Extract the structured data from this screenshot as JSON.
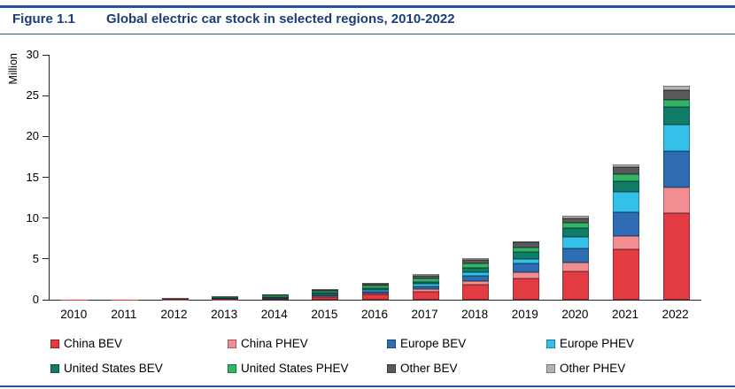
{
  "header": {
    "figure_label": "Figure 1.1",
    "title": "Global electric car stock in selected regions, 2010-2022"
  },
  "colors": {
    "accent": "#2456a4",
    "title_text": "#1b3c78",
    "axis": "#262626"
  },
  "chart_data": {
    "type": "bar",
    "stacked": true,
    "title": "Global electric car stock in selected regions, 2010-2022",
    "xlabel": "",
    "ylabel": "Million",
    "ylim": [
      0,
      30
    ],
    "yticks": [
      0,
      5,
      10,
      15,
      20,
      25,
      30
    ],
    "grid": false,
    "legend_position": "bottom",
    "categories": [
      "2010",
      "2011",
      "2012",
      "2013",
      "2014",
      "2015",
      "2016",
      "2017",
      "2018",
      "2019",
      "2020",
      "2021",
      "2022"
    ],
    "series": [
      {
        "name": "China BEV",
        "color": "#e23b41",
        "values": [
          0.01,
          0.01,
          0.02,
          0.03,
          0.08,
          0.3,
          0.63,
          1.0,
          1.84,
          2.6,
          3.5,
          6.2,
          10.6
        ]
      },
      {
        "name": "China PHEV",
        "color": "#f28e92",
        "values": [
          0.0,
          0.0,
          0.0,
          0.01,
          0.01,
          0.11,
          0.17,
          0.28,
          0.49,
          0.8,
          1.0,
          1.6,
          3.2
        ]
      },
      {
        "name": "Europe BEV",
        "color": "#2e6db4",
        "values": [
          0.0,
          0.01,
          0.02,
          0.05,
          0.09,
          0.15,
          0.22,
          0.34,
          0.56,
          1.0,
          1.75,
          2.9,
          4.4
        ]
      },
      {
        "name": "Europe PHEV",
        "color": "#33c1e9",
        "values": [
          0.0,
          0.0,
          0.01,
          0.02,
          0.06,
          0.12,
          0.19,
          0.3,
          0.45,
          0.6,
          1.4,
          2.5,
          3.3
        ]
      },
      {
        "name": "United States BEV",
        "color": "#0e7c66",
        "values": [
          0.0,
          0.01,
          0.03,
          0.07,
          0.12,
          0.16,
          0.21,
          0.3,
          0.56,
          0.9,
          1.1,
          1.35,
          2.1
        ]
      },
      {
        "name": "United States PHEV",
        "color": "#2eb566",
        "values": [
          0.0,
          0.01,
          0.04,
          0.1,
          0.16,
          0.24,
          0.32,
          0.42,
          0.53,
          0.55,
          0.65,
          0.8,
          0.9
        ]
      },
      {
        "name": "Other BEV",
        "color": "#595959",
        "values": [
          0.01,
          0.02,
          0.05,
          0.09,
          0.13,
          0.14,
          0.2,
          0.33,
          0.5,
          0.55,
          0.6,
          0.85,
          1.2
        ]
      },
      {
        "name": "Other PHEV",
        "color": "#b3b3b3",
        "values": [
          0.0,
          0.0,
          0.01,
          0.02,
          0.04,
          0.06,
          0.09,
          0.13,
          0.17,
          0.2,
          0.3,
          0.4,
          0.5
        ]
      }
    ]
  }
}
